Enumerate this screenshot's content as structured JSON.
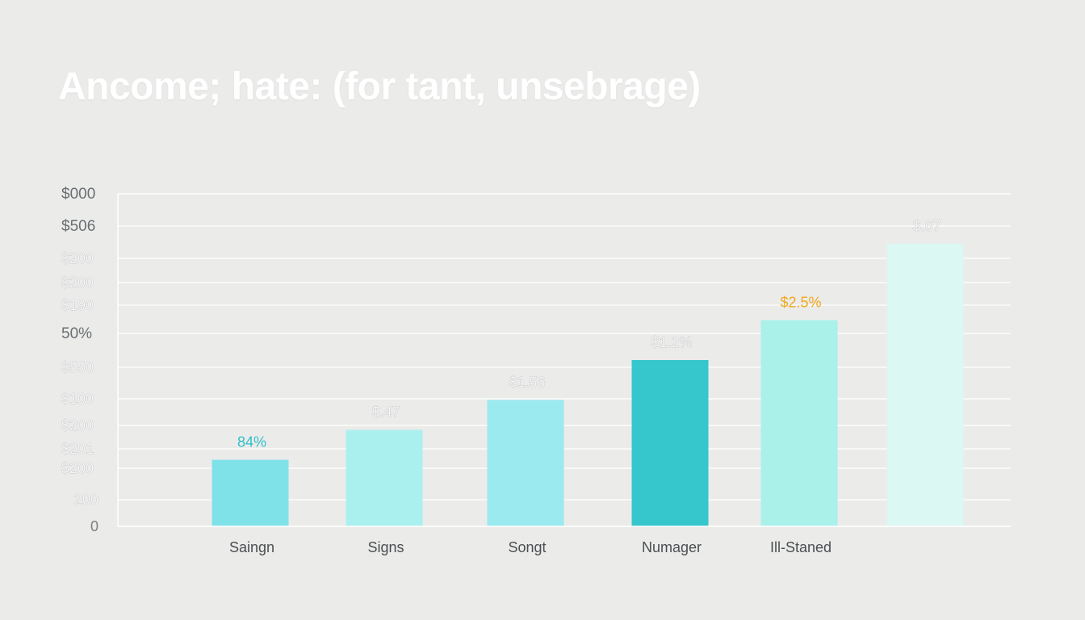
{
  "chart_data": {
    "type": "bar",
    "title": "Ancome; hate: (for tant, unsebrage)",
    "y_tick_labels": [
      "$000",
      "$506",
      "$200",
      "$200",
      "$190",
      "50%",
      "$550",
      "$100",
      "$200",
      "$201",
      "$200",
      "200",
      "0"
    ],
    "categories": [
      "Saingn",
      "Signs",
      "Songt",
      "Numager",
      "Ill-Staned",
      ""
    ],
    "values": [
      20,
      29,
      38,
      50,
      62,
      85
    ],
    "ylim": [
      0,
      100
    ],
    "data_labels": [
      "84%",
      "$.47",
      "$1.56",
      "$1.2%",
      "$2.5%",
      "$.67"
    ],
    "colors": [
      "#80e2e9",
      "#aaf0ee",
      "#9aeaf0",
      "#36c7cc",
      "#aaf1ea",
      "#dbf8f3"
    ],
    "label_colors": [
      "#2fc0c8",
      "faint",
      "faint",
      "faint",
      "#f2a81a",
      "faint"
    ],
    "grid": true,
    "legend": "none"
  }
}
